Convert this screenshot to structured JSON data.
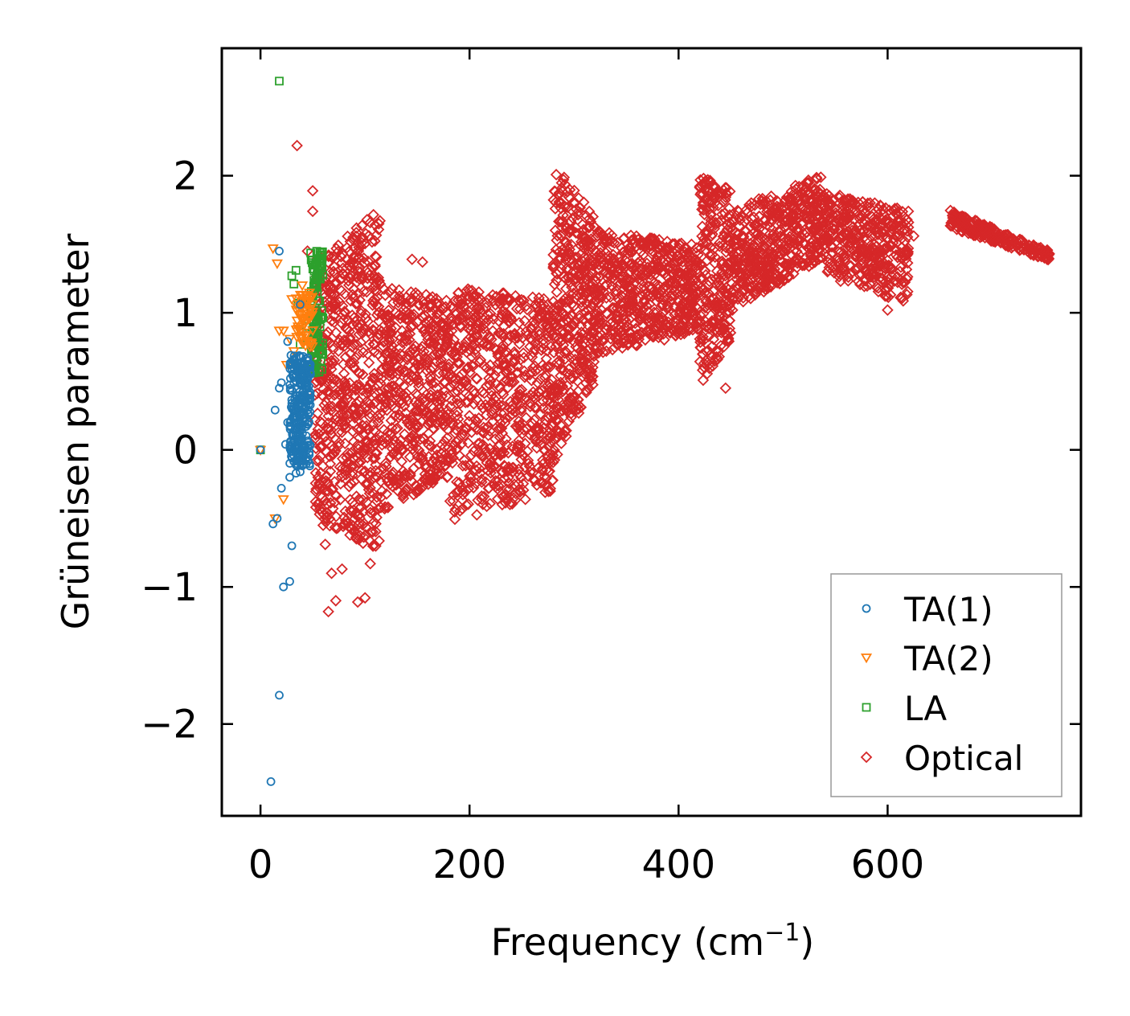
{
  "chart_data": {
    "type": "scatter",
    "xlabel": "Frequency (cm",
    "xlabel_sup": "−1",
    "xlabel_close": ")",
    "ylabel": "Grüneisen parameter",
    "xlim": [
      -37,
      785
    ],
    "ylim": [
      -2.67,
      2.93
    ],
    "xticks": [
      0,
      200,
      400,
      600
    ],
    "xtick_labels": [
      "0",
      "200",
      "400",
      "600"
    ],
    "yticks": [
      -2,
      -1,
      0,
      1,
      2
    ],
    "ytick_labels": [
      "−2",
      "−1",
      "0",
      "1",
      "2"
    ],
    "grid": false,
    "legend_position": "bottom-right",
    "series": [
      {
        "name": "TA(1)",
        "marker": "circle",
        "color": "#1f77b4",
        "points": [
          [
            10,
            -2.42
          ],
          [
            18,
            -1.79
          ],
          [
            22,
            -1.0
          ],
          [
            28,
            -0.96
          ],
          [
            30,
            -0.7
          ],
          [
            12,
            -0.54
          ],
          [
            16,
            -0.5
          ],
          [
            20,
            -0.28
          ],
          [
            28,
            -0.2
          ],
          [
            34,
            -0.17
          ],
          [
            38,
            -0.16
          ],
          [
            14,
            0.29
          ],
          [
            24,
            0.04
          ],
          [
            26,
            0.2
          ],
          [
            30,
            0.34
          ],
          [
            18,
            0.45
          ],
          [
            20,
            0.49
          ],
          [
            26,
            0.79
          ],
          [
            32,
            0.65
          ],
          [
            38,
            1.06
          ],
          [
            18,
            1.45
          ],
          [
            0,
            0.0
          ]
        ],
        "cluster": {
          "x": [
            28,
            48
          ],
          "y": [
            -0.12,
            0.7
          ],
          "count": 260
        }
      },
      {
        "name": "TA(2)",
        "marker": "triangle-down",
        "color": "#ff7f0e",
        "points": [
          [
            12,
            1.47
          ],
          [
            16,
            1.36
          ],
          [
            18,
            0.87
          ],
          [
            22,
            0.87
          ],
          [
            28,
            0.81
          ],
          [
            25,
            0.62
          ],
          [
            32,
            0.72
          ],
          [
            14,
            -0.5
          ],
          [
            22,
            -0.36
          ],
          [
            0,
            0.0
          ],
          [
            36,
            0.9
          ],
          [
            40,
            0.95
          ],
          [
            30,
            1.1
          ],
          [
            40,
            1.2
          ]
        ],
        "cluster": {
          "x": [
            34,
            50
          ],
          "y": [
            0.75,
            1.15
          ],
          "count": 60
        }
      },
      {
        "name": "LA",
        "marker": "square",
        "color": "#2ca02c",
        "points": [
          [
            18,
            2.69
          ],
          [
            30,
            1.27
          ],
          [
            32,
            1.21
          ],
          [
            34,
            1.31
          ],
          [
            36,
            1.07
          ],
          [
            40,
            1.07
          ],
          [
            0,
            0.0
          ],
          [
            38,
            0.77
          ],
          [
            44,
            0.9
          ]
        ],
        "cluster": {
          "x": [
            48,
            60
          ],
          "y": [
            0.55,
            1.45
          ],
          "count": 110
        }
      },
      {
        "name": "Optical",
        "marker": "diamond",
        "color": "#d62728",
        "points": [
          [
            35,
            2.22
          ],
          [
            50,
            1.89
          ],
          [
            50,
            1.74
          ],
          [
            45,
            1.45
          ],
          [
            60,
            -0.55
          ],
          [
            62,
            -0.69
          ],
          [
            68,
            -0.9
          ],
          [
            72,
            -1.1
          ],
          [
            78,
            -0.87
          ],
          [
            65,
            -1.18
          ],
          [
            93,
            -1.11
          ],
          [
            100,
            -1.08
          ],
          [
            105,
            -0.83
          ],
          [
            145,
            1.39
          ],
          [
            155,
            1.37
          ],
          [
            555,
            1.23
          ],
          [
            575,
            1.28
          ],
          [
            600,
            1.02
          ],
          [
            620,
            1.66
          ],
          [
            625,
            1.56
          ],
          [
            445,
            0.45
          ],
          [
            330,
            0.88
          ],
          [
            750,
            1.4
          ]
        ],
        "bands": [
          {
            "x": [
              52,
              115
            ],
            "y_lo": [
              -0.5,
              -0.75
            ],
            "y_hi": [
              1.4,
              1.76
            ],
            "count": 650
          },
          {
            "x": [
              115,
              180
            ],
            "y_lo": [
              -0.45,
              -0.2
            ],
            "y_hi": [
              1.2,
              1.1
            ],
            "count": 520
          },
          {
            "x": [
              180,
              280
            ],
            "y_lo": [
              -0.55,
              -0.3
            ],
            "y_hi": [
              1.2,
              1.1
            ],
            "count": 700
          },
          {
            "x": [
              280,
              320
            ],
            "y_lo": [
              -0.1,
              0.5
            ],
            "y_hi": [
              2.1,
              1.7
            ],
            "count": 420
          },
          {
            "x": [
              320,
              420
            ],
            "y_lo": [
              0.7,
              0.85
            ],
            "y_hi": [
              1.6,
              1.5
            ],
            "count": 620
          },
          {
            "x": [
              420,
              450
            ],
            "y_lo": [
              0.45,
              0.8
            ],
            "y_hi": [
              2.02,
              1.9
            ],
            "count": 260
          },
          {
            "x": [
              450,
              540
            ],
            "y_lo": [
              1.0,
              1.4
            ],
            "y_hi": [
              1.75,
              2.02
            ],
            "count": 520
          },
          {
            "x": [
              540,
              620
            ],
            "y_lo": [
              1.3,
              1.05
            ],
            "y_hi": [
              1.88,
              1.75
            ],
            "count": 420
          },
          {
            "x": [
              660,
              755
            ],
            "y_lo": [
              1.62,
              1.38
            ],
            "y_hi": [
              1.75,
              1.45
            ],
            "count": 220
          }
        ]
      }
    ]
  }
}
